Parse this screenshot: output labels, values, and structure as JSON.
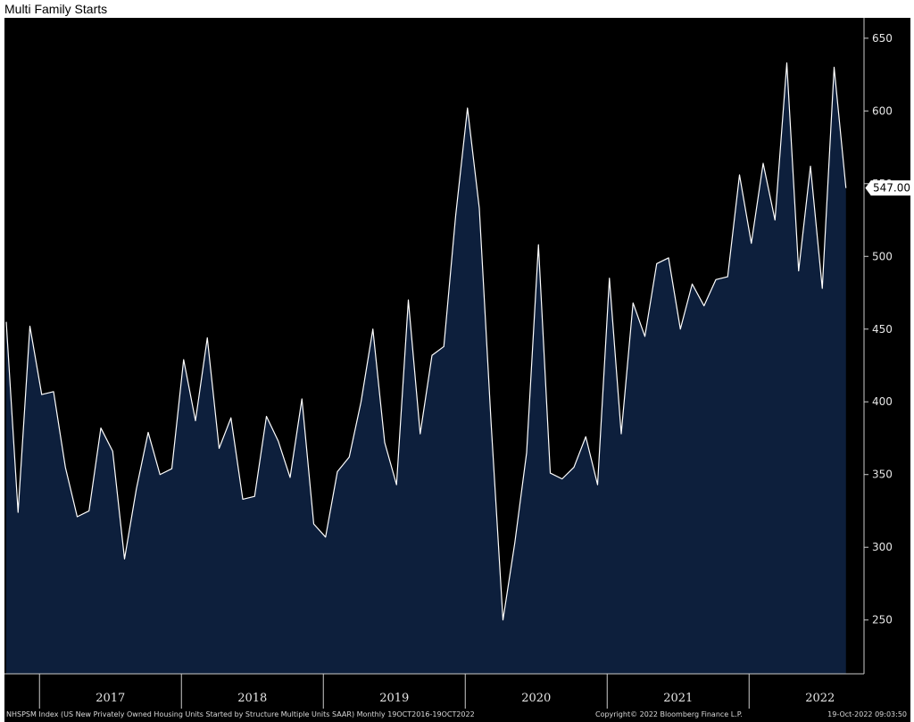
{
  "title": "Multi Family Starts",
  "footer": {
    "source": "NHSPSM Index (US New Privately Owned Housing Units Started by Structure Multiple Units SAAR)  Monthly 19OCT2016-19OCT2022",
    "copyright": "Copyright© 2022 Bloomberg Finance L.P.",
    "timestamp": "19-Oct-2022 09:03:50"
  },
  "colors": {
    "background": "#000000",
    "area_fill": "#0d1f3c",
    "line": "#ffffff",
    "axis": "#cccccc",
    "text": "#e6e6e6"
  },
  "last_value_label": "547.00",
  "chart_data": {
    "type": "area",
    "title": "Multi Family Starts",
    "xlabel": "",
    "ylabel": "",
    "y_axis_side": "right",
    "ylim": [
      213,
      664
    ],
    "y_ticks": [
      250,
      300,
      350,
      400,
      450,
      500,
      550,
      600,
      650
    ],
    "x_tick_labels": [
      "2017",
      "2018",
      "2019",
      "2020",
      "2021",
      "2022"
    ],
    "x_start": "2016-10",
    "x_end": "2022-09",
    "grid": false,
    "legend": "none",
    "series": [
      {
        "frequency": "monthly",
        "values": [
          455,
          324,
          452,
          405,
          407,
          355,
          321,
          325,
          382,
          366,
          292,
          340,
          379,
          350,
          354,
          429,
          387,
          444,
          368,
          389,
          333,
          335,
          390,
          373,
          348,
          402,
          316,
          307,
          352,
          362,
          400,
          450,
          372,
          343,
          470,
          378,
          432,
          438,
          528,
          602,
          533,
          385,
          250,
          303,
          365,
          508,
          351,
          347,
          355,
          376,
          343,
          485,
          378,
          468,
          445,
          495,
          499,
          450,
          481,
          466,
          484,
          486,
          556,
          509,
          564,
          525,
          633,
          490,
          562,
          478,
          630,
          547
        ]
      }
    ]
  }
}
